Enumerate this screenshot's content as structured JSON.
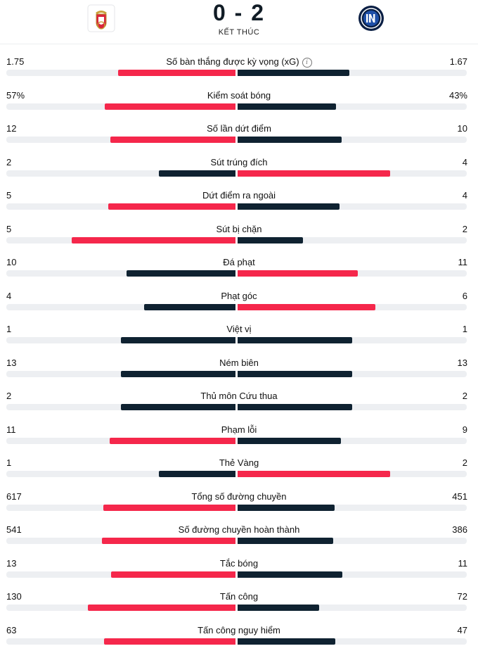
{
  "match": {
    "score": "0 - 2",
    "status": "KẾT THÚC",
    "home_logo": "benfica-crest-icon",
    "away_logo": "inter-crest-icon"
  },
  "colors": {
    "winner": "#f5274b",
    "loser": "#0f2231",
    "track": "#edeff2"
  },
  "bar_scale_max": 326,
  "stats": [
    {
      "label": "Số bàn thắng được kỳ vọng (xG)",
      "home": "1.75",
      "away": "1.67",
      "home_fill": 0.512,
      "away_fill": 0.488,
      "info": true
    },
    {
      "label": "Kiểm soát bóng",
      "home": "57%",
      "away": "43%",
      "home_fill": 0.57,
      "away_fill": 0.43
    },
    {
      "label": "Số lần dứt điểm",
      "home": "12",
      "away": "10",
      "home_fill": 0.545,
      "away_fill": 0.455
    },
    {
      "label": "Sút trúng đích",
      "home": "2",
      "away": "4",
      "home_fill": 0.333,
      "away_fill": 0.667
    },
    {
      "label": "Dứt điểm ra ngoài",
      "home": "5",
      "away": "4",
      "home_fill": 0.556,
      "away_fill": 0.444
    },
    {
      "label": "Sút bị chặn",
      "home": "5",
      "away": "2",
      "home_fill": 0.714,
      "away_fill": 0.286
    },
    {
      "label": "Đá phạt",
      "home": "10",
      "away": "11",
      "home_fill": 0.476,
      "away_fill": 0.524
    },
    {
      "label": "Phạt góc",
      "home": "4",
      "away": "6",
      "home_fill": 0.4,
      "away_fill": 0.6
    },
    {
      "label": "Việt vị",
      "home": "1",
      "away": "1",
      "home_fill": 0.5,
      "away_fill": 0.5
    },
    {
      "label": "Ném biên",
      "home": "13",
      "away": "13",
      "home_fill": 0.5,
      "away_fill": 0.5
    },
    {
      "label": "Thủ môn Cứu thua",
      "home": "2",
      "away": "2",
      "home_fill": 0.5,
      "away_fill": 0.5
    },
    {
      "label": "Phạm lỗi",
      "home": "11",
      "away": "9",
      "home_fill": 0.55,
      "away_fill": 0.45
    },
    {
      "label": "Thẻ Vàng",
      "home": "1",
      "away": "2",
      "home_fill": 0.333,
      "away_fill": 0.667
    },
    {
      "label": "Tổng số đường chuyền",
      "home": "617",
      "away": "451",
      "home_fill": 0.578,
      "away_fill": 0.422
    },
    {
      "label": "Số đường chuyền hoàn thành",
      "home": "541",
      "away": "386",
      "home_fill": 0.584,
      "away_fill": 0.416
    },
    {
      "label": "Tắc bóng",
      "home": "13",
      "away": "11",
      "home_fill": 0.542,
      "away_fill": 0.458
    },
    {
      "label": "Tấn công",
      "home": "130",
      "away": "72",
      "home_fill": 0.644,
      "away_fill": 0.356
    },
    {
      "label": "Tấn công nguy hiểm",
      "home": "63",
      "away": "47",
      "home_fill": 0.573,
      "away_fill": 0.427
    }
  ]
}
